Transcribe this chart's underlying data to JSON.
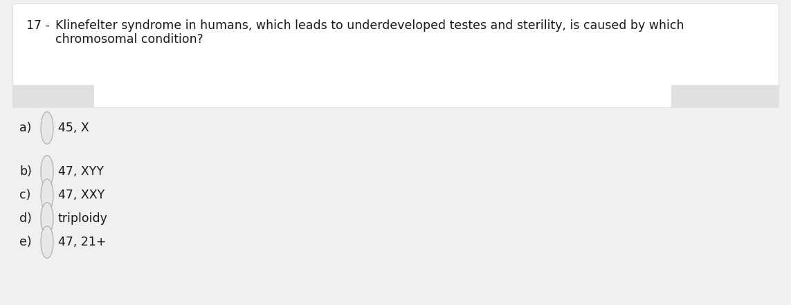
{
  "background_color": "#ffffff",
  "page_bg": "#f0f0f0",
  "question_number": "17 -",
  "question_text_line1": "Klinefelter syndrome in humans, which leads to underdeveloped testes and sterility, is caused by which",
  "question_text_line2": "chromosomal condition?",
  "options": [
    {
      "label": "a)",
      "text": "45, X"
    },
    {
      "label": "b)",
      "text": "47, XYY"
    },
    {
      "label": "c)",
      "text": "47, XXY"
    },
    {
      "label": "d)",
      "text": "triploidy"
    },
    {
      "label": "e)",
      "text": "47, 21+"
    }
  ],
  "font_family": "DejaVu Sans",
  "question_fontsize": 12.5,
  "option_fontsize": 12.5,
  "text_color": "#1a1a1a",
  "circle_edge_color": "#b0b0b0",
  "circle_face_color": "#e8e8e8",
  "gray_bar_color": "#e0e0e0",
  "white_box_color": "#ffffff",
  "white_box_border": "#d8d8d8",
  "fig_width": 11.43,
  "fig_height": 4.41,
  "dpi": 100
}
